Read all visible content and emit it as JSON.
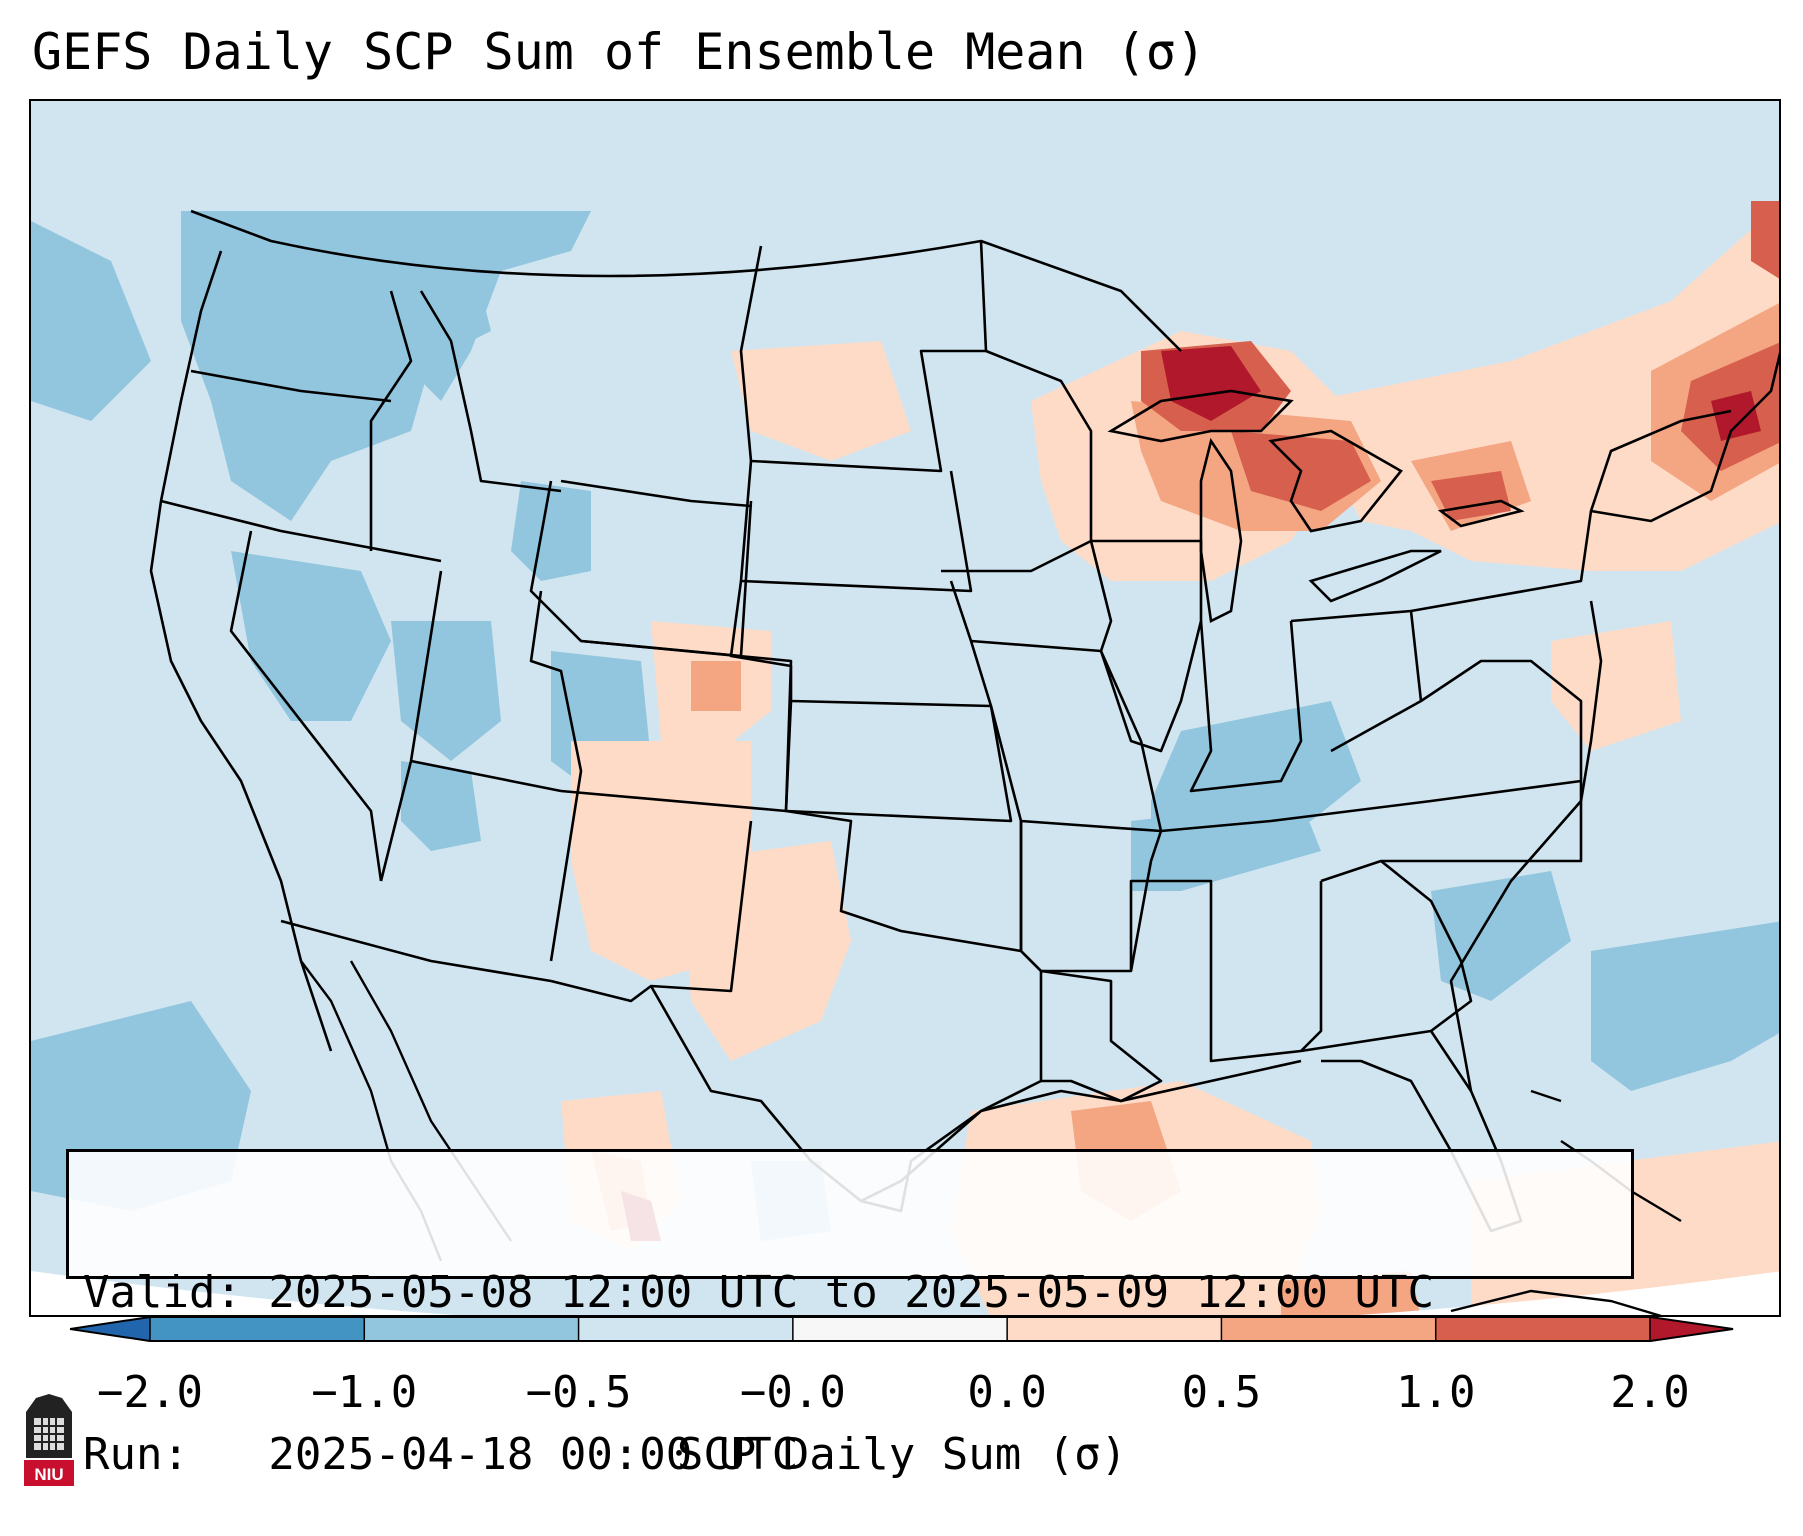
{
  "title": "GEFS Daily SCP Sum of Ensemble Mean (σ)",
  "info": {
    "valid_line": "Valid: 2025-05-08 12:00 UTC to 2025-05-09 12:00 UTC",
    "run_line": "Run:   2025-04-18 00:00 UTC"
  },
  "colorbar": {
    "label": "SCP Daily Sum (σ)",
    "tick_labels": [
      "−2.0",
      "−1.0",
      "−0.5",
      "−0.0",
      "0.0",
      "0.5",
      "1.0",
      "2.0"
    ],
    "bins": [
      {
        "range": "< -2.0",
        "color": "#2166ac"
      },
      {
        "range": "-2.0 to -1.0",
        "color": "#4393c3"
      },
      {
        "range": "-1.0 to -0.5",
        "color": "#92c5de"
      },
      {
        "range": "-0.5 to 0.0",
        "color": "#d1e5f0"
      },
      {
        "range": "0.0",
        "color": "#f7f7f7"
      },
      {
        "range": "0.0 to 0.5",
        "color": "#fddbc7"
      },
      {
        "range": "0.5 to 1.0",
        "color": "#f4a582"
      },
      {
        "range": "1.0 to 2.0",
        "color": "#d6604d"
      },
      {
        "range": "> 2.0",
        "color": "#b2182b"
      }
    ]
  },
  "map": {
    "domain": "Contiguous United States",
    "projection": "Lambert Conformal",
    "background_color": "#d1e5f0",
    "boundary_color": "#000000",
    "max_region": "Upper Michigan / Lake Superior",
    "max_color": "#b2182b"
  },
  "logo": {
    "text": "NIU",
    "color": "#c8102e"
  }
}
